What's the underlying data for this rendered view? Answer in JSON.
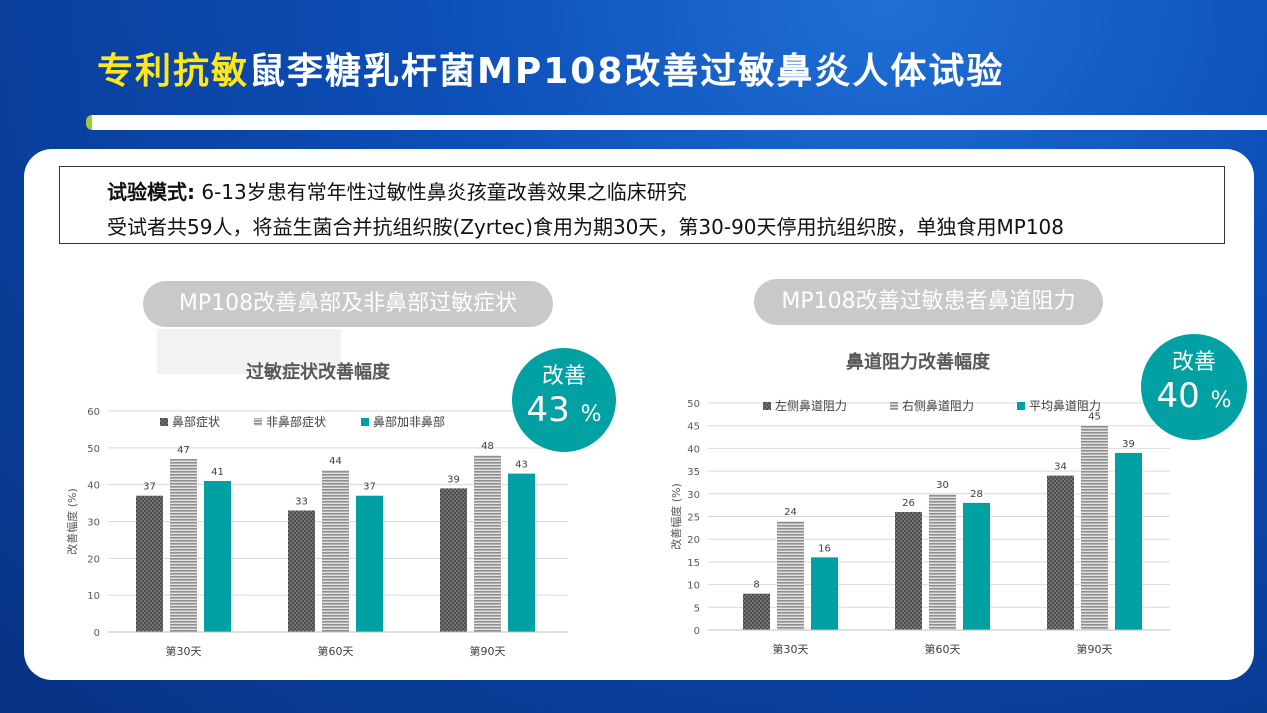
{
  "header": {
    "title_highlight": "专利抗敏",
    "title_rest": "鼠李糖乳杆菌MP108改善过敏鼻炎人体试验"
  },
  "info": {
    "label": "试验模式:",
    "line1": " 6-13岁患有常年性过敏性鼻炎孩童改善效果之临床研究",
    "line2": "受试者共59人，将益生菌合并抗组织胺(Zyrtec)食用为期30天，第30-90天停用抗组织胺，单独食用MP108"
  },
  "colors": {
    "teal": "#00a0a3",
    "dark_gray": "#555555",
    "light_gray": "#a6a6a6",
    "pill": "#c9c9c9"
  },
  "charts": [
    {
      "pill": "MP108改善鼻部及非鼻部过敏症状",
      "badge_label": "改善",
      "badge_value": "43",
      "badge_unit": "%"
    },
    {
      "pill": "MP108改善过敏患者鼻道阻力",
      "badge_label": "改善",
      "badge_value": "40",
      "badge_unit": "%"
    }
  ],
  "chart_data": [
    {
      "type": "bar",
      "title": "过敏症状改善幅度",
      "ylabel": "改善幅度 (%)",
      "xlabel": "",
      "ylim": [
        0,
        60
      ],
      "yticks": [
        0,
        10,
        20,
        30,
        40,
        50,
        60
      ],
      "categories": [
        "第30天",
        "第60天",
        "第90天"
      ],
      "series": [
        {
          "name": "鼻部症状",
          "pattern": "dots",
          "values": [
            37,
            33,
            39
          ]
        },
        {
          "name": "非鼻部症状",
          "pattern": "lines",
          "values": [
            47,
            44,
            48
          ]
        },
        {
          "name": "鼻部加非鼻部",
          "pattern": "solid",
          "values": [
            41,
            37,
            43
          ]
        }
      ],
      "legend": "top",
      "grid": true
    },
    {
      "type": "bar",
      "title": "鼻道阻力改善幅度",
      "ylabel": "改善幅度 (%)",
      "xlabel": "",
      "ylim": [
        0,
        50
      ],
      "yticks": [
        0,
        5,
        10,
        15,
        20,
        25,
        30,
        35,
        40,
        45,
        50
      ],
      "categories": [
        "第30天",
        "第60天",
        "第90天"
      ],
      "series": [
        {
          "name": "左侧鼻道阻力",
          "pattern": "dots",
          "values": [
            8,
            26,
            34
          ]
        },
        {
          "name": "右侧鼻道阻力",
          "pattern": "lines",
          "values": [
            24,
            30,
            45
          ]
        },
        {
          "name": "平均鼻道阻力",
          "pattern": "solid",
          "values": [
            16,
            28,
            39
          ]
        }
      ],
      "legend": "top",
      "grid": true
    }
  ]
}
